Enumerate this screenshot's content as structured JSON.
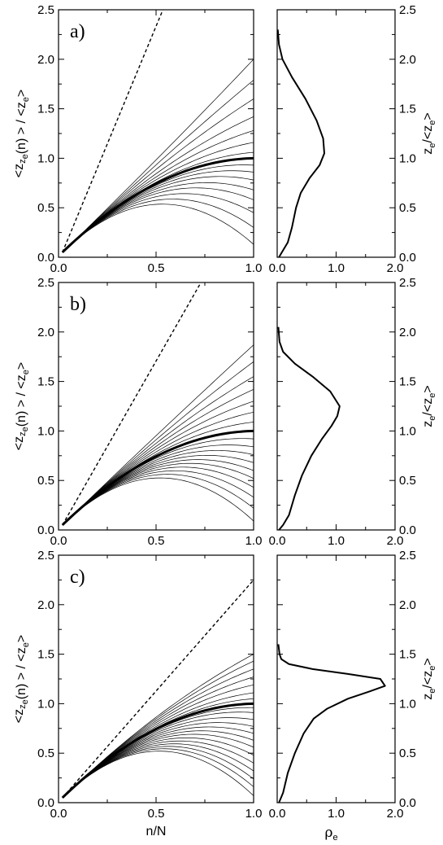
{
  "chart_data": [
    {
      "panel": "a)",
      "type": "line",
      "left": {
        "xlabel": "n/N",
        "ylabel": "<z_{z_e}(n)>/<z_e>",
        "xlim": [
          0,
          1
        ],
        "ylim": [
          0,
          2.5
        ],
        "xticks": [
          "0.0",
          "0.5",
          "1.0"
        ],
        "yticks": [
          "0.0",
          "0.5",
          "1.0",
          "1.5",
          "2.0",
          "2.5"
        ],
        "dashed_endpoint": [
          0.535,
          2.5
        ],
        "thick_end": 1.0,
        "thin_ends": [
          0.13,
          0.3,
          0.45,
          0.58,
          0.68,
          0.78,
          0.86,
          0.93,
          1.06,
          1.16,
          1.28,
          1.42,
          1.6,
          1.79,
          2.0
        ]
      },
      "right": {
        "xlabel": "ρ_e",
        "ylabel": "z_e/<z_e>",
        "xlim": [
          0,
          2
        ],
        "ylim": [
          0,
          2.5
        ],
        "xticks": [
          "0.0",
          "1.0",
          "2.0"
        ],
        "density": [
          [
            0.03,
            0
          ],
          [
            0.08,
            0.05
          ],
          [
            0.18,
            0.15
          ],
          [
            0.25,
            0.3
          ],
          [
            0.32,
            0.5
          ],
          [
            0.4,
            0.65
          ],
          [
            0.55,
            0.8
          ],
          [
            0.72,
            0.93
          ],
          [
            0.8,
            1.05
          ],
          [
            0.78,
            1.2
          ],
          [
            0.67,
            1.38
          ],
          [
            0.48,
            1.6
          ],
          [
            0.25,
            1.82
          ],
          [
            0.09,
            2.0
          ],
          [
            0.03,
            2.15
          ],
          [
            0.01,
            2.3
          ]
        ]
      }
    },
    {
      "panel": "b)",
      "type": "line",
      "left": {
        "xlabel": "n/N",
        "ylabel": "<z_{z_e}(n)>/<z_e>",
        "xlim": [
          0,
          1
        ],
        "ylim": [
          0,
          2.5
        ],
        "xticks": [
          "0.0",
          "0.5",
          "1.0"
        ],
        "yticks": [
          "0.0",
          "0.5",
          "1.0",
          "1.5",
          "2.0",
          "2.5"
        ],
        "dashed_endpoint": [
          0.73,
          2.5
        ],
        "thick_end": 1.0,
        "thin_ends": [
          0.09,
          0.22,
          0.33,
          0.43,
          0.52,
          0.6,
          0.68,
          0.76,
          0.84,
          0.92,
          1.09,
          1.19,
          1.3,
          1.42,
          1.55,
          1.7,
          1.87
        ]
      },
      "right": {
        "xlabel": "ρ_e",
        "ylabel": "z_e/<z_e>",
        "xlim": [
          0,
          2
        ],
        "ylim": [
          0,
          2.5
        ],
        "xticks": [
          "0.0",
          "1.0",
          "2.0"
        ],
        "density": [
          [
            0.03,
            0
          ],
          [
            0.1,
            0.05
          ],
          [
            0.2,
            0.15
          ],
          [
            0.3,
            0.35
          ],
          [
            0.42,
            0.55
          ],
          [
            0.58,
            0.75
          ],
          [
            0.76,
            0.92
          ],
          [
            0.92,
            1.05
          ],
          [
            1.02,
            1.15
          ],
          [
            1.06,
            1.25
          ],
          [
            0.9,
            1.4
          ],
          [
            0.6,
            1.55
          ],
          [
            0.3,
            1.68
          ],
          [
            0.1,
            1.8
          ],
          [
            0.04,
            1.9
          ],
          [
            0.02,
            2.05
          ]
        ]
      }
    },
    {
      "panel": "c)",
      "type": "line",
      "left": {
        "xlabel": "n/N",
        "ylabel": "<z_{z_e}(n)>/<z_e>",
        "xlim": [
          0,
          1
        ],
        "ylim": [
          0,
          2.5
        ],
        "xticks": [
          "0.0",
          "0.5",
          "1.0"
        ],
        "yticks": [
          "0.0",
          "0.5",
          "1.0",
          "1.5",
          "2.0",
          "2.5"
        ],
        "dashed_endpoint": [
          1.0,
          2.25
        ],
        "thick_end": 1.0,
        "thin_ends": [
          0.07,
          0.16,
          0.24,
          0.32,
          0.4,
          0.48,
          0.56,
          0.63,
          0.7,
          0.77,
          0.84,
          0.91,
          0.96,
          1.05,
          1.11,
          1.19,
          1.27,
          1.35,
          1.43,
          1.5
        ]
      },
      "right": {
        "xlabel": "ρ_e",
        "ylabel": "z_e/<z_e>",
        "xlim": [
          0,
          2
        ],
        "ylim": [
          0,
          2.5
        ],
        "xticks": [
          "0.0",
          "1.0",
          "2.0"
        ],
        "density": [
          [
            0.03,
            0
          ],
          [
            0.1,
            0.1
          ],
          [
            0.18,
            0.3
          ],
          [
            0.3,
            0.5
          ],
          [
            0.45,
            0.7
          ],
          [
            0.62,
            0.85
          ],
          [
            0.85,
            0.95
          ],
          [
            1.2,
            1.05
          ],
          [
            1.55,
            1.12
          ],
          [
            1.83,
            1.18
          ],
          [
            1.75,
            1.25
          ],
          [
            1.2,
            1.3
          ],
          [
            0.6,
            1.35
          ],
          [
            0.2,
            1.4
          ],
          [
            0.07,
            1.45
          ],
          [
            0.04,
            1.5
          ],
          [
            0.02,
            1.6
          ]
        ]
      }
    }
  ]
}
